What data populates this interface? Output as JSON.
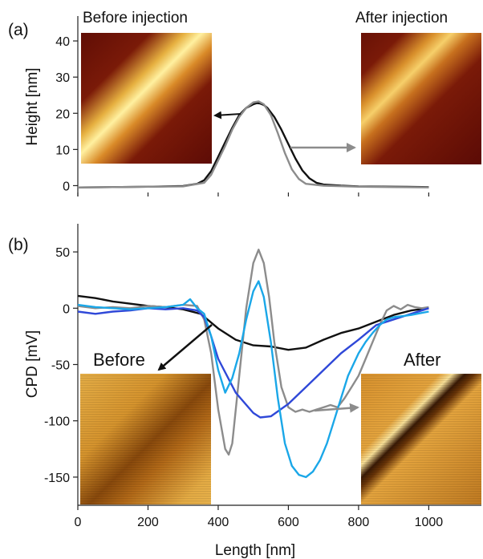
{
  "panels": [
    {
      "id": "a",
      "panel_label": "(a)",
      "ylabel": "Height [nm]",
      "insets": [
        {
          "label": "Before  injection",
          "kind": "height",
          "stripe": "lower"
        },
        {
          "label": "After injection",
          "kind": "height",
          "stripe": "upper"
        }
      ]
    },
    {
      "id": "b",
      "panel_label": "(b)",
      "ylabel": "CPD [mV]",
      "insets": [
        {
          "label": "Before",
          "kind": "cpd",
          "stripe": "single"
        },
        {
          "label": "After",
          "kind": "cpd",
          "stripe": "double"
        }
      ]
    }
  ],
  "xlabel": "Length [nm]",
  "colors": {
    "black": "#111111",
    "gray": "#8c8c8c",
    "blue": "#2f48d8",
    "light_blue": "#1aa7e8"
  },
  "chart_data": [
    {
      "type": "line",
      "panel": "(a)",
      "xlim": [
        0,
        1150
      ],
      "ylim": [
        -3,
        44
      ],
      "x_ticks": [
        0,
        200,
        400,
        600,
        800,
        1000
      ],
      "y_ticks": [
        0,
        10,
        20,
        30,
        40
      ],
      "ylabel": "Height [nm]",
      "series": [
        {
          "color": "#111111",
          "x": [
            0,
            100,
            200,
            300,
            340,
            360,
            380,
            400,
            420,
            440,
            460,
            480,
            500,
            510,
            520,
            530,
            540,
            560,
            580,
            600,
            620,
            640,
            660,
            680,
            700,
            750,
            800,
            900,
            1000
          ],
          "y": [
            -0.5,
            -0.4,
            -0.3,
            -0.1,
            0.5,
            1.5,
            4,
            8,
            12,
            16,
            19.5,
            21.5,
            22.5,
            22.8,
            22.7,
            22.3,
            21.5,
            19,
            15.5,
            11.5,
            7.5,
            4.2,
            2,
            0.8,
            0.3,
            0,
            -0.2,
            -0.3,
            -0.4
          ]
        },
        {
          "color": "#8c8c8c",
          "x": [
            0,
            100,
            200,
            300,
            360,
            380,
            400,
            420,
            440,
            460,
            480,
            500,
            515,
            530,
            550,
            570,
            590,
            610,
            630,
            650,
            700,
            800,
            900,
            1000
          ],
          "y": [
            -0.5,
            -0.4,
            -0.3,
            -0.2,
            0.8,
            3,
            7,
            11,
            15.5,
            19,
            21.5,
            23,
            23.3,
            22.5,
            19.5,
            14.5,
            9,
            4.5,
            1.8,
            0.5,
            0,
            -0.3,
            -0.4,
            -0.5
          ]
        }
      ]
    },
    {
      "type": "line",
      "panel": "(b)",
      "xlim": [
        0,
        1150
      ],
      "ylim": [
        -175,
        75
      ],
      "x_ticks": [
        0,
        200,
        400,
        600,
        800,
        1000
      ],
      "y_ticks": [
        50,
        0,
        -50,
        -100,
        -150
      ],
      "ylabel": "CPD [mV]",
      "xlabel": "Length [nm]",
      "series": [
        {
          "color": "#111111",
          "x": [
            0,
            50,
            100,
            150,
            200,
            250,
            300,
            350,
            400,
            450,
            500,
            550,
            600,
            650,
            700,
            750,
            800,
            850,
            900,
            950,
            1000
          ],
          "y": [
            11,
            9,
            6,
            4,
            2,
            1,
            -1,
            -5,
            -18,
            -28,
            -33,
            -34,
            -37,
            -35,
            -28,
            -22,
            -18,
            -12,
            -6,
            -2,
            0
          ]
        },
        {
          "color": "#8c8c8c",
          "x": [
            0,
            50,
            100,
            150,
            200,
            250,
            300,
            340,
            360,
            380,
            400,
            420,
            430,
            440,
            460,
            480,
            500,
            515,
            530,
            545,
            560,
            580,
            600,
            620,
            640,
            660,
            680,
            700,
            720,
            740,
            760,
            780,
            800,
            820,
            840,
            860,
            880,
            900,
            920,
            940,
            960,
            980,
            1000
          ],
          "y": [
            2,
            0,
            1,
            0,
            2,
            1,
            3,
            2,
            -10,
            -40,
            -90,
            -125,
            -130,
            -120,
            -60,
            0,
            40,
            52,
            40,
            10,
            -30,
            -70,
            -88,
            -92,
            -90,
            -92,
            -90,
            -88,
            -86,
            -88,
            -80,
            -70,
            -60,
            -45,
            -30,
            -15,
            -2,
            2,
            -1,
            3,
            1,
            0,
            1
          ]
        },
        {
          "color": "#2f48d8",
          "x": [
            0,
            50,
            100,
            150,
            200,
            250,
            300,
            340,
            360,
            380,
            400,
            450,
            500,
            520,
            550,
            600,
            650,
            700,
            750,
            800,
            850,
            900,
            950,
            1000
          ],
          "y": [
            -3,
            -5,
            -3,
            -2,
            0,
            -1,
            0,
            -2,
            -8,
            -25,
            -45,
            -75,
            -93,
            -97,
            -96,
            -85,
            -70,
            -55,
            -40,
            -28,
            -15,
            -10,
            -5,
            0
          ]
        },
        {
          "color": "#1aa7e8",
          "x": [
            0,
            50,
            100,
            150,
            200,
            250,
            300,
            320,
            340,
            360,
            380,
            400,
            420,
            440,
            460,
            480,
            500,
            515,
            530,
            550,
            570,
            590,
            610,
            630,
            650,
            670,
            690,
            710,
            730,
            750,
            770,
            800,
            820,
            840,
            860,
            880,
            900,
            950,
            1000
          ],
          "y": [
            3,
            1,
            0,
            -1,
            0,
            1,
            3,
            8,
            0,
            -5,
            -25,
            -55,
            -75,
            -62,
            -40,
            -10,
            15,
            24,
            10,
            -30,
            -80,
            -120,
            -140,
            -148,
            -150,
            -145,
            -135,
            -120,
            -100,
            -80,
            -60,
            -40,
            -30,
            -22,
            -15,
            -10,
            -8,
            -6,
            -3
          ]
        }
      ]
    }
  ]
}
